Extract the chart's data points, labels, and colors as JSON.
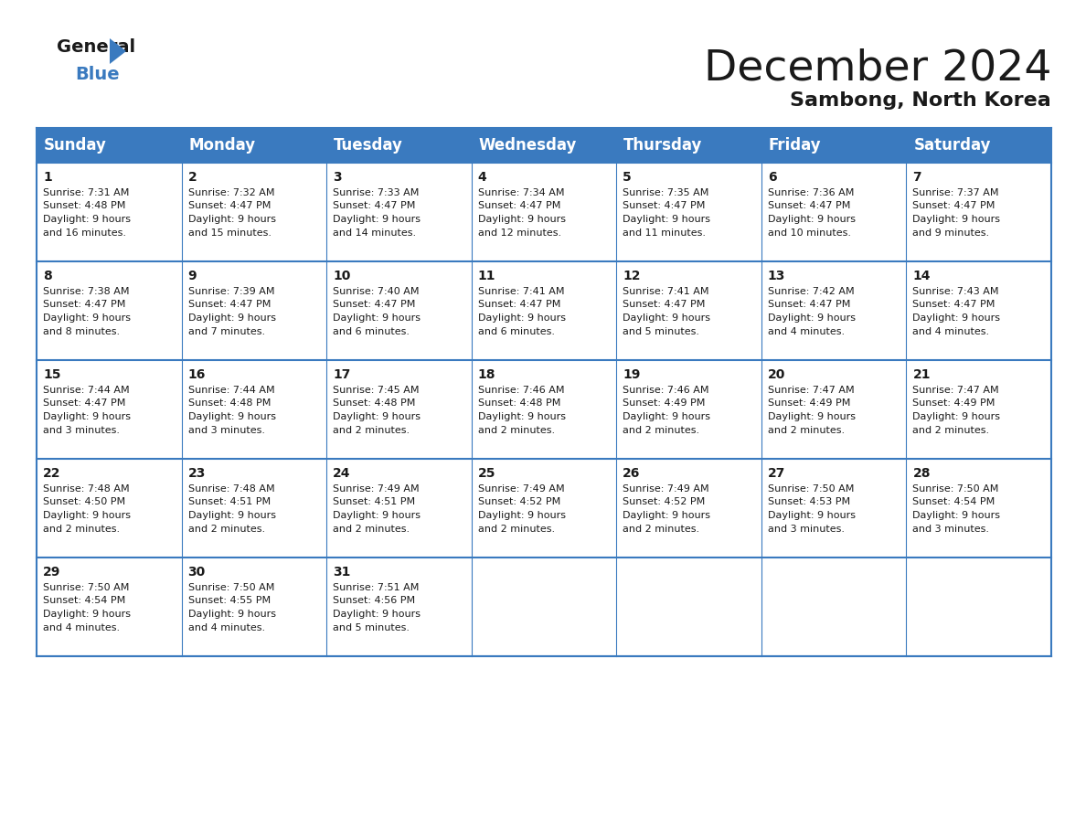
{
  "title": "December 2024",
  "subtitle": "Sambong, North Korea",
  "header_color": "#3a7abf",
  "header_text_color": "#ffffff",
  "border_color": "#3a7abf",
  "text_color": "#1a1a1a",
  "day_names": [
    "Sunday",
    "Monday",
    "Tuesday",
    "Wednesday",
    "Thursday",
    "Friday",
    "Saturday"
  ],
  "title_fontsize": 34,
  "subtitle_fontsize": 16,
  "day_header_fontsize": 12,
  "day_num_fontsize": 10,
  "cell_text_fontsize": 8,
  "logo_general_fontsize": 14,
  "logo_blue_fontsize": 14,
  "calendar": [
    [
      {
        "day": 1,
        "sunrise": "7:31 AM",
        "sunset": "4:48 PM",
        "daylight_line1": "Daylight: 9 hours",
        "daylight_line2": "and 16 minutes."
      },
      {
        "day": 2,
        "sunrise": "7:32 AM",
        "sunset": "4:47 PM",
        "daylight_line1": "Daylight: 9 hours",
        "daylight_line2": "and 15 minutes."
      },
      {
        "day": 3,
        "sunrise": "7:33 AM",
        "sunset": "4:47 PM",
        "daylight_line1": "Daylight: 9 hours",
        "daylight_line2": "and 14 minutes."
      },
      {
        "day": 4,
        "sunrise": "7:34 AM",
        "sunset": "4:47 PM",
        "daylight_line1": "Daylight: 9 hours",
        "daylight_line2": "and 12 minutes."
      },
      {
        "day": 5,
        "sunrise": "7:35 AM",
        "sunset": "4:47 PM",
        "daylight_line1": "Daylight: 9 hours",
        "daylight_line2": "and 11 minutes."
      },
      {
        "day": 6,
        "sunrise": "7:36 AM",
        "sunset": "4:47 PM",
        "daylight_line1": "Daylight: 9 hours",
        "daylight_line2": "and 10 minutes."
      },
      {
        "day": 7,
        "sunrise": "7:37 AM",
        "sunset": "4:47 PM",
        "daylight_line1": "Daylight: 9 hours",
        "daylight_line2": "and 9 minutes."
      }
    ],
    [
      {
        "day": 8,
        "sunrise": "7:38 AM",
        "sunset": "4:47 PM",
        "daylight_line1": "Daylight: 9 hours",
        "daylight_line2": "and 8 minutes."
      },
      {
        "day": 9,
        "sunrise": "7:39 AM",
        "sunset": "4:47 PM",
        "daylight_line1": "Daylight: 9 hours",
        "daylight_line2": "and 7 minutes."
      },
      {
        "day": 10,
        "sunrise": "7:40 AM",
        "sunset": "4:47 PM",
        "daylight_line1": "Daylight: 9 hours",
        "daylight_line2": "and 6 minutes."
      },
      {
        "day": 11,
        "sunrise": "7:41 AM",
        "sunset": "4:47 PM",
        "daylight_line1": "Daylight: 9 hours",
        "daylight_line2": "and 6 minutes."
      },
      {
        "day": 12,
        "sunrise": "7:41 AM",
        "sunset": "4:47 PM",
        "daylight_line1": "Daylight: 9 hours",
        "daylight_line2": "and 5 minutes."
      },
      {
        "day": 13,
        "sunrise": "7:42 AM",
        "sunset": "4:47 PM",
        "daylight_line1": "Daylight: 9 hours",
        "daylight_line2": "and 4 minutes."
      },
      {
        "day": 14,
        "sunrise": "7:43 AM",
        "sunset": "4:47 PM",
        "daylight_line1": "Daylight: 9 hours",
        "daylight_line2": "and 4 minutes."
      }
    ],
    [
      {
        "day": 15,
        "sunrise": "7:44 AM",
        "sunset": "4:47 PM",
        "daylight_line1": "Daylight: 9 hours",
        "daylight_line2": "and 3 minutes."
      },
      {
        "day": 16,
        "sunrise": "7:44 AM",
        "sunset": "4:48 PM",
        "daylight_line1": "Daylight: 9 hours",
        "daylight_line2": "and 3 minutes."
      },
      {
        "day": 17,
        "sunrise": "7:45 AM",
        "sunset": "4:48 PM",
        "daylight_line1": "Daylight: 9 hours",
        "daylight_line2": "and 2 minutes."
      },
      {
        "day": 18,
        "sunrise": "7:46 AM",
        "sunset": "4:48 PM",
        "daylight_line1": "Daylight: 9 hours",
        "daylight_line2": "and 2 minutes."
      },
      {
        "day": 19,
        "sunrise": "7:46 AM",
        "sunset": "4:49 PM",
        "daylight_line1": "Daylight: 9 hours",
        "daylight_line2": "and 2 minutes."
      },
      {
        "day": 20,
        "sunrise": "7:47 AM",
        "sunset": "4:49 PM",
        "daylight_line1": "Daylight: 9 hours",
        "daylight_line2": "and 2 minutes."
      },
      {
        "day": 21,
        "sunrise": "7:47 AM",
        "sunset": "4:49 PM",
        "daylight_line1": "Daylight: 9 hours",
        "daylight_line2": "and 2 minutes."
      }
    ],
    [
      {
        "day": 22,
        "sunrise": "7:48 AM",
        "sunset": "4:50 PM",
        "daylight_line1": "Daylight: 9 hours",
        "daylight_line2": "and 2 minutes."
      },
      {
        "day": 23,
        "sunrise": "7:48 AM",
        "sunset": "4:51 PM",
        "daylight_line1": "Daylight: 9 hours",
        "daylight_line2": "and 2 minutes."
      },
      {
        "day": 24,
        "sunrise": "7:49 AM",
        "sunset": "4:51 PM",
        "daylight_line1": "Daylight: 9 hours",
        "daylight_line2": "and 2 minutes."
      },
      {
        "day": 25,
        "sunrise": "7:49 AM",
        "sunset": "4:52 PM",
        "daylight_line1": "Daylight: 9 hours",
        "daylight_line2": "and 2 minutes."
      },
      {
        "day": 26,
        "sunrise": "7:49 AM",
        "sunset": "4:52 PM",
        "daylight_line1": "Daylight: 9 hours",
        "daylight_line2": "and 2 minutes."
      },
      {
        "day": 27,
        "sunrise": "7:50 AM",
        "sunset": "4:53 PM",
        "daylight_line1": "Daylight: 9 hours",
        "daylight_line2": "and 3 minutes."
      },
      {
        "day": 28,
        "sunrise": "7:50 AM",
        "sunset": "4:54 PM",
        "daylight_line1": "Daylight: 9 hours",
        "daylight_line2": "and 3 minutes."
      }
    ],
    [
      {
        "day": 29,
        "sunrise": "7:50 AM",
        "sunset": "4:54 PM",
        "daylight_line1": "Daylight: 9 hours",
        "daylight_line2": "and 4 minutes."
      },
      {
        "day": 30,
        "sunrise": "7:50 AM",
        "sunset": "4:55 PM",
        "daylight_line1": "Daylight: 9 hours",
        "daylight_line2": "and 4 minutes."
      },
      {
        "day": 31,
        "sunrise": "7:51 AM",
        "sunset": "4:56 PM",
        "daylight_line1": "Daylight: 9 hours",
        "daylight_line2": "and 5 minutes."
      },
      null,
      null,
      null,
      null
    ]
  ]
}
